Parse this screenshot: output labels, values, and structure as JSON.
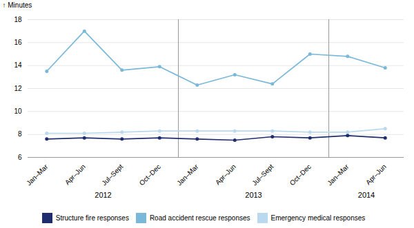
{
  "chart_data": {
    "type": "line",
    "categories": [
      "Jan–Mar",
      "Apr–Jun",
      "Jul–Sept",
      "Oct–Dec",
      "Jan–Mar",
      "Apr–Jun",
      "Jul–Sept",
      "Oct–Dec",
      "Jan–Mar",
      "Apr–Jun"
    ],
    "annotations": [
      "2012",
      "2013",
      "2014"
    ],
    "series": [
      {
        "name": "Structure fire responses",
        "color": "#1f2d6e",
        "values": [
          7.6,
          7.7,
          7.6,
          7.7,
          7.6,
          7.5,
          7.8,
          7.7,
          7.9,
          7.7
        ]
      },
      {
        "name": "Road accident rescue responses",
        "color": "#7ab8d9",
        "values": [
          13.5,
          17.0,
          13.6,
          13.9,
          12.3,
          13.2,
          12.4,
          15.0,
          14.8,
          13.8
        ]
      },
      {
        "name": "Emergency medical responses",
        "color": "#b8d9ee",
        "values": [
          8.1,
          8.1,
          8.2,
          8.3,
          8.3,
          8.3,
          8.3,
          8.2,
          8.2,
          8.5
        ]
      }
    ],
    "y_label": "Minutes",
    "ylim": [
      6,
      18
    ],
    "yticks": [
      6,
      8,
      10,
      12,
      14,
      16,
      18
    ],
    "grid": true,
    "legend": "bottom",
    "marker": "circle"
  }
}
